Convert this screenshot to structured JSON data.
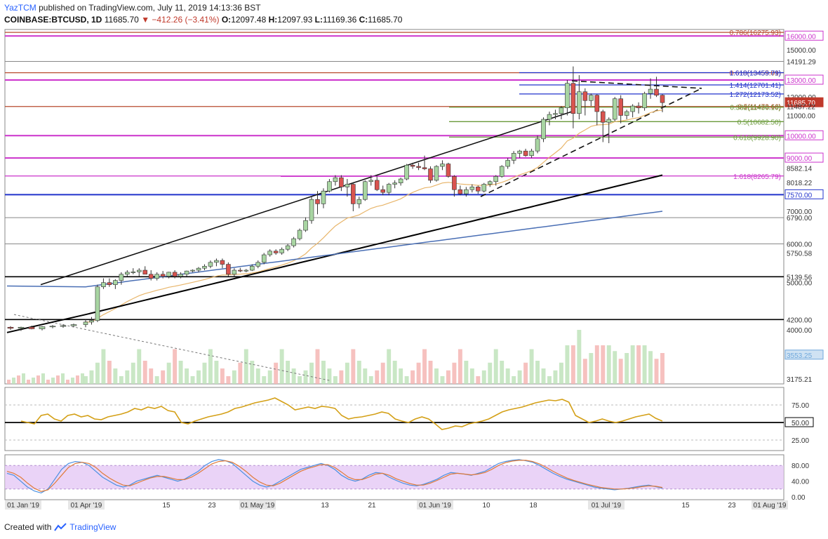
{
  "header": {
    "author": "YazTCM",
    "published_text": "published on TradingView.com, July 11, 2019 14:13:36 BST",
    "symbol": "COINBASE:BTCUSD, 1D",
    "last": "11685.70",
    "change": "−412.26 (−3.41%)",
    "o_label": "O:",
    "o": "12097.48",
    "h_label": "H:",
    "h": "12097.93",
    "l_label": "L:",
    "l": "11169.36",
    "c_label": "C:",
    "c": "11685.70"
  },
  "footer": {
    "created_with": "Created with",
    "brand": "TradingView"
  },
  "colors": {
    "up": "#a8d5a2",
    "down": "#d9534f",
    "ema_slow": "#000000",
    "ema_med": "#4a6fb5",
    "ema_fast": "#e8b56a",
    "fib_red": "#b84a2e",
    "purple": "#cc33cc",
    "blue": "#2233cc",
    "green": "#6a9a3a",
    "rsi": "#d4a017",
    "stoch_k": "#4a90e2",
    "stoch_d": "#e07b39",
    "stoch_band": "#e5c8f5"
  },
  "chart_data": [
    {
      "type": "candlestick",
      "title": "COINBASE:BTCUSD, 1D",
      "y_range": [
        3100,
        16500
      ],
      "y_scale": "log",
      "x_ticks": [
        "01 Jan '19",
        "01 Apr '19",
        "15",
        "23",
        "01 May '19",
        "13",
        "21",
        "01 Jun '19",
        "10",
        "18",
        "01 Jul '19",
        "15",
        "23",
        "01 Aug '19"
      ],
      "price_labels": [
        {
          "text": "0.786(16275.93)",
          "price": 16275.93,
          "color": "#b84a2e",
          "kind": "text"
        },
        {
          "text": "16000.00",
          "price": 16000,
          "color": "#cc33cc",
          "kind": "box"
        },
        {
          "text": "15000.00",
          "price": 15000,
          "color": "#333333",
          "kind": "plain"
        },
        {
          "text": "14191.29",
          "price": 14191.29,
          "color": "#333333",
          "kind": "plain"
        },
        {
          "text": "0.618(13455.01)",
          "price": 13455.01,
          "color": "#b84a2e",
          "kind": "text"
        },
        {
          "text": "1.618(13459.79)",
          "price": 13459.79,
          "color": "#2233cc",
          "kind": "text"
        },
        {
          "text": "13000.00",
          "price": 13000,
          "color": "#cc33cc",
          "kind": "box"
        },
        {
          "text": "1.414(12701.41)",
          "price": 12701.41,
          "color": "#2233cc",
          "kind": "text"
        },
        {
          "text": "1.272(12173.52)",
          "price": 12173.52,
          "color": "#2233cc",
          "kind": "text"
        },
        {
          "text": "12000.00",
          "price": 12000,
          "color": "#333333",
          "kind": "plain"
        },
        {
          "text": "11685.70",
          "price": 11685.7,
          "color": "#c0392b",
          "kind": "solid"
        },
        {
          "text": "0.5(11473.66)",
          "price": 11473.66,
          "color": "#b84a2e",
          "kind": "text"
        },
        {
          "text": "0.382(11436.10)",
          "price": 11436.1,
          "color": "#6a9a3a",
          "kind": "text"
        },
        {
          "text": "11487.22",
          "price": 11487.22,
          "color": "#333333",
          "kind": "plain"
        },
        {
          "text": "11000.00",
          "price": 11000,
          "color": "#333333",
          "kind": "plain"
        },
        {
          "text": "0.5(10682.50)",
          "price": 10682.5,
          "color": "#6a9a3a",
          "kind": "text"
        },
        {
          "text": "10000.00",
          "price": 10000,
          "color": "#cc33cc",
          "kind": "box"
        },
        {
          "text": "0.618(9928.90)",
          "price": 9928.9,
          "color": "#6a9a3a",
          "kind": "text"
        },
        {
          "text": "9000.00",
          "price": 9000,
          "color": "#cc33cc",
          "kind": "box"
        },
        {
          "text": "8582.14",
          "price": 8582.14,
          "color": "#333333",
          "kind": "plain"
        },
        {
          "text": "1.618(8265.79)",
          "price": 8265.79,
          "color": "#cc33cc",
          "kind": "text"
        },
        {
          "text": "8018.22",
          "price": 8018.22,
          "color": "#333333",
          "kind": "plain"
        },
        {
          "text": "7570.00",
          "price": 7570,
          "color": "#2233cc",
          "kind": "box"
        },
        {
          "text": "7000.00",
          "price": 7000,
          "color": "#333333",
          "kind": "plain"
        },
        {
          "text": "6790.00",
          "price": 6790,
          "color": "#333333",
          "kind": "plain"
        },
        {
          "text": "6000.00",
          "price": 6000,
          "color": "#333333",
          "kind": "plain"
        },
        {
          "text": "5750.58",
          "price": 5750.58,
          "color": "#333333",
          "kind": "plain"
        },
        {
          "text": "5139.56",
          "price": 5139.56,
          "color": "#333333",
          "kind": "plain"
        },
        {
          "text": "5000.00",
          "price": 5000,
          "color": "#333333",
          "kind": "plain"
        },
        {
          "text": "4200.00",
          "price": 4200,
          "color": "#333333",
          "kind": "plain"
        },
        {
          "text": "4000.00",
          "price": 4000,
          "color": "#333333",
          "kind": "plain"
        },
        {
          "text": "3553.25",
          "price": 3553.25,
          "color": "#6fa8dc",
          "kind": "light"
        },
        {
          "text": "3175.21",
          "price": 3175.21,
          "color": "#333333",
          "kind": "plain"
        }
      ],
      "candles_o_h_l_c": [
        [
          4100,
          4200,
          4050,
          4150
        ],
        [
          4150,
          4250,
          4100,
          4180
        ],
        [
          4180,
          4950,
          4150,
          4900
        ],
        [
          4900,
          5100,
          4850,
          5000
        ],
        [
          5000,
          5100,
          4900,
          4950
        ],
        [
          4950,
          5080,
          4850,
          5050
        ],
        [
          5050,
          5250,
          4950,
          5200
        ],
        [
          5200,
          5300,
          5150,
          5250
        ],
        [
          5250,
          5350,
          5200,
          5260
        ],
        [
          5260,
          5350,
          5150,
          5300
        ],
        [
          5300,
          5400,
          5200,
          5200
        ],
        [
          5200,
          5300,
          5050,
          5100
        ],
        [
          5100,
          5250,
          5050,
          5200
        ],
        [
          5200,
          5280,
          5100,
          5150
        ],
        [
          5150,
          5260,
          5100,
          5250
        ],
        [
          5250,
          5300,
          5100,
          5150
        ],
        [
          5150,
          5250,
          5100,
          5200
        ],
        [
          5200,
          5290,
          5150,
          5280
        ],
        [
          5280,
          5320,
          5250,
          5300
        ],
        [
          5300,
          5380,
          5250,
          5350
        ],
        [
          5350,
          5450,
          5300,
          5400
        ],
        [
          5400,
          5550,
          5350,
          5500
        ],
        [
          5500,
          5600,
          5400,
          5550
        ],
        [
          5550,
          5600,
          5350,
          5450
        ],
        [
          5450,
          5500,
          5150,
          5200
        ],
        [
          5200,
          5350,
          5150,
          5300
        ],
        [
          5300,
          5360,
          5250,
          5280
        ],
        [
          5280,
          5330,
          5250,
          5300
        ],
        [
          5300,
          5450,
          5280,
          5400
        ],
        [
          5400,
          5550,
          5350,
          5500
        ],
        [
          5500,
          5750,
          5450,
          5700
        ],
        [
          5700,
          5850,
          5650,
          5800
        ],
        [
          5800,
          5850,
          5700,
          5750
        ],
        [
          5750,
          5900,
          5700,
          5850
        ],
        [
          5850,
          6000,
          5800,
          5950
        ],
        [
          5950,
          6200,
          5900,
          6150
        ],
        [
          6150,
          6450,
          6100,
          6400
        ],
        [
          6400,
          6800,
          6350,
          6700
        ],
        [
          6700,
          7500,
          6600,
          7400
        ],
        [
          7400,
          7700,
          6900,
          7250
        ],
        [
          7250,
          7800,
          7100,
          7700
        ],
        [
          7700,
          8150,
          7650,
          8050
        ],
        [
          8050,
          8300,
          7900,
          8200
        ],
        [
          8200,
          8300,
          7700,
          7850
        ],
        [
          7850,
          8150,
          7500,
          7950
        ],
        [
          7950,
          8000,
          7000,
          7250
        ],
        [
          7250,
          7500,
          7100,
          7400
        ],
        [
          7400,
          8100,
          7350,
          8050
        ],
        [
          8050,
          8300,
          7900,
          8100
        ],
        [
          8100,
          8250,
          7700,
          7750
        ],
        [
          7750,
          7900,
          7550,
          7650
        ],
        [
          7650,
          8000,
          7550,
          7950
        ],
        [
          7950,
          8100,
          7800,
          8000
        ],
        [
          8000,
          8200,
          7900,
          8150
        ],
        [
          8150,
          8750,
          8100,
          8700
        ],
        [
          8700,
          8800,
          8550,
          8650
        ],
        [
          8650,
          8800,
          8500,
          8600
        ],
        [
          8600,
          9100,
          8500,
          8550
        ],
        [
          8550,
          8650,
          8000,
          8100
        ],
        [
          8100,
          8700,
          8050,
          8650
        ],
        [
          8650,
          8900,
          8500,
          8750
        ],
        [
          8750,
          8800,
          8200,
          8250
        ],
        [
          8250,
          8300,
          7500,
          7750
        ],
        [
          7750,
          7900,
          7550,
          7600
        ],
        [
          7600,
          7850,
          7500,
          7750
        ],
        [
          7750,
          7950,
          7650,
          7850
        ],
        [
          7850,
          7900,
          7600,
          7700
        ],
        [
          7700,
          8000,
          7650,
          7950
        ],
        [
          7950,
          8100,
          7850,
          8050
        ],
        [
          8050,
          8300,
          7900,
          8250
        ],
        [
          8250,
          8700,
          8200,
          8650
        ],
        [
          8650,
          9000,
          8550,
          8900
        ],
        [
          8900,
          9300,
          8750,
          9200
        ],
        [
          9200,
          9350,
          9000,
          9300
        ],
        [
          9300,
          9400,
          9050,
          9100
        ],
        [
          9100,
          9400,
          9000,
          9300
        ],
        [
          9300,
          10000,
          9200,
          9850
        ],
        [
          9850,
          10900,
          9700,
          10800
        ],
        [
          10800,
          11200,
          10500,
          11050
        ],
        [
          11050,
          11300,
          10800,
          11100
        ],
        [
          11100,
          11500,
          10800,
          11400
        ],
        [
          11400,
          13000,
          11000,
          12800
        ],
        [
          12800,
          13860,
          10350,
          11100
        ],
        [
          11100,
          13300,
          10800,
          12300
        ],
        [
          12300,
          12500,
          11000,
          11800
        ],
        [
          11800,
          12200,
          11500,
          12100
        ],
        [
          12100,
          12150,
          10500,
          11200
        ],
        [
          11200,
          11300,
          9700,
          10650
        ],
        [
          10650,
          10900,
          9650,
          10800
        ],
        [
          10800,
          12000,
          10700,
          11900
        ],
        [
          11900,
          12100,
          10600,
          11000
        ],
        [
          11000,
          11300,
          10800,
          11200
        ],
        [
          11200,
          11600,
          10900,
          11500
        ],
        [
          11500,
          11700,
          11100,
          11400
        ],
        [
          11400,
          12300,
          11250,
          12200
        ],
        [
          12200,
          13100,
          11900,
          12450
        ],
        [
          12450,
          13200,
          12000,
          12100
        ],
        [
          12100,
          12150,
          11170,
          11686
        ]
      ],
      "volume_level_hint": [
        0.2,
        0.35,
        0.55,
        0.9,
        0.6,
        0.4
      ],
      "overlay_lines": [
        "horizontal levels",
        "ascending trendline",
        "triangle upper",
        "triangle lower",
        "EMA 100 (black)",
        "EMA 200 (blue)",
        "EMA 20 (orange)"
      ]
    },
    {
      "type": "line",
      "title": "",
      "ylim": [
        10,
        100
      ],
      "ticks": [
        "75.00",
        "50.00",
        "25.00"
      ],
      "series": [
        {
          "values": [
            52,
            50,
            48,
            60,
            62,
            55,
            52,
            60,
            62,
            58,
            60,
            55,
            54,
            58,
            60,
            62,
            65,
            70,
            68,
            72,
            70,
            73,
            67,
            65,
            50,
            48,
            52,
            55,
            58,
            60,
            62,
            65,
            70,
            72,
            75,
            78,
            80,
            82,
            85,
            80,
            75,
            68,
            70,
            72,
            70,
            73,
            72,
            70,
            60,
            55,
            57,
            58,
            60,
            62,
            65,
            63,
            55,
            52,
            50,
            55,
            58,
            55,
            48,
            40,
            42,
            45,
            44,
            48,
            50,
            52,
            55,
            60,
            65,
            68,
            70,
            72,
            75,
            78,
            80,
            82,
            81,
            83,
            79,
            60,
            55,
            50,
            52,
            55,
            52,
            50,
            52,
            55,
            58,
            60,
            62,
            56,
            52
          ]
        }
      ]
    },
    {
      "type": "line",
      "title": "",
      "ylim": [
        0,
        100
      ],
      "ticks": [
        "80.00",
        "40.00",
        "0.00"
      ],
      "series": [
        {
          "values": [
            60,
            55,
            40,
            25,
            15,
            10,
            20,
            45,
            70,
            85,
            90,
            88,
            80,
            65,
            50,
            40,
            30,
            25,
            30,
            40,
            45,
            50,
            55,
            50,
            45,
            40,
            45,
            55,
            65,
            80,
            90,
            95,
            92,
            85,
            70,
            55,
            40,
            30,
            25,
            30,
            40,
            50,
            60,
            70,
            75,
            80,
            85,
            80,
            70,
            55,
            45,
            40,
            45,
            55,
            62,
            60,
            50,
            42,
            35,
            30,
            28,
            32,
            38,
            45,
            55,
            62,
            60,
            58,
            55,
            60,
            65,
            75,
            85,
            90,
            93,
            95,
            92,
            88,
            80,
            70,
            60,
            52,
            45,
            40,
            35,
            30,
            25,
            22,
            20,
            18,
            20,
            22,
            25,
            28,
            30,
            26,
            22
          ]
        },
        {
          "values": [
            65,
            60,
            50,
            35,
            22,
            14,
            18,
            35,
            55,
            75,
            85,
            88,
            85,
            75,
            60,
            48,
            38,
            30,
            28,
            35,
            42,
            48,
            52,
            52,
            48,
            44,
            44,
            50,
            60,
            72,
            84,
            90,
            92,
            88,
            78,
            65,
            50,
            38,
            30,
            28,
            35,
            45,
            55,
            65,
            72,
            77,
            82,
            82,
            75,
            63,
            50,
            44,
            44,
            50,
            58,
            60,
            55,
            46,
            40,
            34,
            30,
            30,
            35,
            42,
            50,
            58,
            60,
            58,
            56,
            58,
            62,
            70,
            80,
            87,
            91,
            93,
            93,
            90,
            84,
            75,
            65,
            56,
            48,
            42,
            37,
            32,
            28,
            24,
            22,
            20,
            20,
            21,
            23,
            26,
            28,
            27,
            24
          ]
        }
      ]
    }
  ]
}
